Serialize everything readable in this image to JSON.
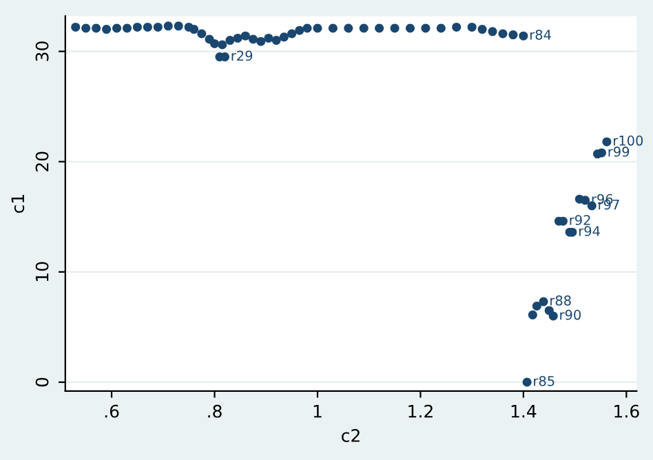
{
  "chart_data": {
    "type": "scatter",
    "xlabel": "c2",
    "ylabel": "c1",
    "x": [
      0.53,
      0.55,
      0.57,
      0.59,
      0.61,
      0.63,
      0.65,
      0.67,
      0.69,
      0.71,
      0.73,
      0.75,
      0.76,
      0.775,
      0.79,
      0.8,
      0.815,
      0.83,
      0.845,
      0.86,
      0.875,
      0.89,
      0.905,
      0.92,
      0.935,
      0.95,
      0.965,
      0.98,
      1.0,
      1.03,
      1.06,
      1.09,
      1.12,
      1.15,
      1.18,
      1.21,
      1.24,
      1.27,
      1.3,
      1.32,
      1.34,
      1.36,
      1.38,
      1.4,
      0.81,
      0.82,
      1.562,
      1.544,
      1.552,
      1.509,
      1.52,
      1.533,
      1.469,
      1.477,
      1.49,
      1.495,
      1.439,
      1.426,
      1.418,
      1.45,
      1.458,
      1.407
    ],
    "series": [
      {
        "color": "#1a476f",
        "values": [
          32.2,
          32.1,
          32.1,
          32.0,
          32.1,
          32.1,
          32.2,
          32.2,
          32.2,
          32.3,
          32.3,
          32.2,
          32.0,
          31.6,
          31.1,
          30.7,
          30.6,
          31.0,
          31.2,
          31.4,
          31.1,
          30.9,
          31.2,
          31.0,
          31.3,
          31.6,
          31.9,
          32.1,
          32.1,
          32.1,
          32.1,
          32.1,
          32.1,
          32.1,
          32.1,
          32.1,
          32.1,
          32.2,
          32.2,
          32.0,
          31.8,
          31.6,
          31.5,
          31.4,
          29.5,
          29.5,
          21.8,
          20.7,
          20.8,
          16.6,
          16.5,
          16.0,
          14.6,
          14.6,
          13.6,
          13.6,
          7.3,
          6.9,
          6.1,
          6.5,
          6.0,
          0.0
        ]
      }
    ],
    "annotations": [
      {
        "text": "r84",
        "x": 1.4,
        "y": 31.4
      },
      {
        "text": "r29",
        "x": 0.82,
        "y": 29.5
      },
      {
        "text": "r100",
        "x": 1.562,
        "y": 21.8
      },
      {
        "text": "r99",
        "x": 1.552,
        "y": 20.8
      },
      {
        "text": "r96",
        "x": 1.52,
        "y": 16.5
      },
      {
        "text": "r97",
        "x": 1.533,
        "y": 16.0
      },
      {
        "text": "r92",
        "x": 1.477,
        "y": 14.6
      },
      {
        "text": "r94",
        "x": 1.495,
        "y": 13.6
      },
      {
        "text": "r88",
        "x": 1.439,
        "y": 7.3
      },
      {
        "text": "r90",
        "x": 1.458,
        "y": 6.0
      },
      {
        "text": "r85",
        "x": 1.407,
        "y": 0.0
      }
    ],
    "xlim": [
      0.51,
      1.62
    ],
    "ylim": [
      -0.8,
      33.2
    ],
    "xticks": [
      {
        "value": 0.6,
        "label": ".6"
      },
      {
        "value": 0.8,
        "label": ".8"
      },
      1,
      1.2,
      1.4,
      1.6
    ],
    "yticks": [
      0,
      10,
      20,
      30
    ],
    "grid": "y",
    "marker": "circle"
  }
}
